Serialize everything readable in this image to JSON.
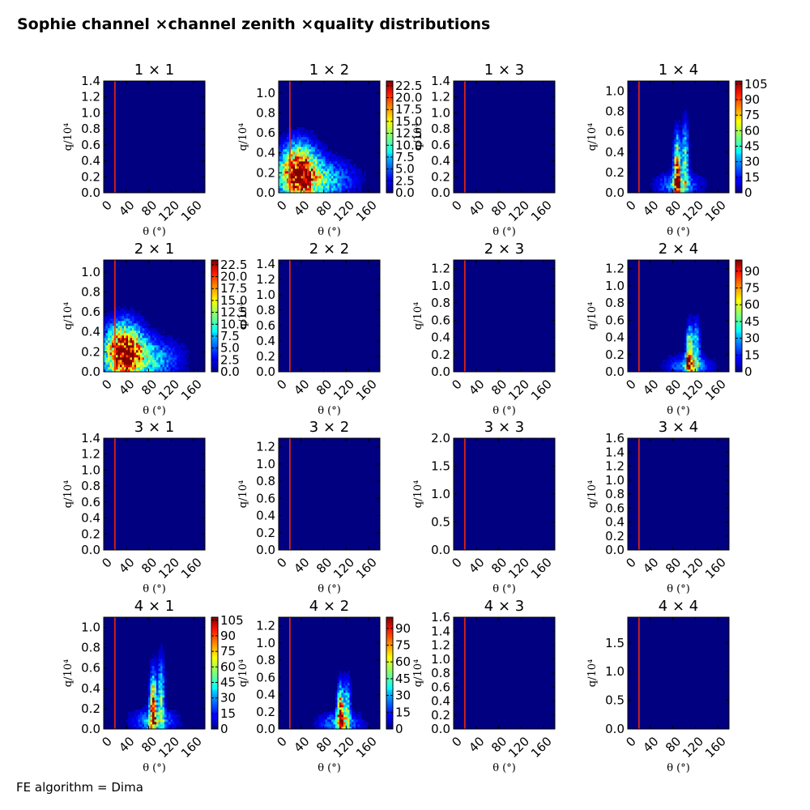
{
  "title": "Sophie channel ×channel zenith ×quality distributions",
  "footer": "FE algorithm = Dima",
  "colors": {
    "background": "#000080",
    "cut_line": "#ff2a00",
    "frame": "#000000"
  },
  "chart_data": [
    {
      "title": "1  × 1",
      "type": "heatmap",
      "xlabel": "θ (°)",
      "ylabel": "q/10⁴",
      "xlim": [
        0,
        180
      ],
      "ylim": [
        0,
        1.4
      ],
      "yticks": [
        "0.0",
        "0.2",
        "0.4",
        "0.6",
        "0.8",
        "1.0",
        "1.2",
        "1.4"
      ],
      "xticks": [
        "0",
        "40",
        "80",
        "120",
        "160"
      ],
      "cut_x": 20,
      "colorbar": null
    },
    {
      "title": "1  × 2",
      "type": "heatmap",
      "xlabel": "θ (°)",
      "ylabel": "q/10⁴",
      "xlim": [
        0,
        180
      ],
      "ylim": [
        0,
        1.12
      ],
      "yticks": [
        "0.0",
        "0.2",
        "0.4",
        "0.6",
        "0.8",
        "1.0"
      ],
      "xticks": [
        "0",
        "40",
        "80",
        "120",
        "160"
      ],
      "cut_x": 20,
      "colorbar": {
        "vmax": 23.5,
        "ticks": [
          "0.0",
          "2.5",
          "5.0",
          "7.5",
          "10.0",
          "12.5",
          "15.0",
          "17.5",
          "20.0",
          "22.5"
        ]
      },
      "blobs": [
        {
          "cx": 35,
          "cy": 0.22,
          "sx": 22,
          "sy": 0.18,
          "amp": 1.0
        },
        {
          "cx": 70,
          "cy": 0.12,
          "sx": 40,
          "sy": 0.14,
          "amp": 0.45
        }
      ]
    },
    {
      "title": "1  × 3",
      "type": "heatmap",
      "xlabel": "θ (°)",
      "ylabel": "q/10⁴",
      "xlim": [
        0,
        180
      ],
      "ylim": [
        0,
        1.4
      ],
      "yticks": [
        "0.0",
        "0.2",
        "0.4",
        "0.6",
        "0.8",
        "1.0",
        "1.2",
        "1.4"
      ],
      "xticks": [
        "0",
        "40",
        "80",
        "120",
        "160"
      ],
      "cut_x": 20,
      "colorbar": null
    },
    {
      "title": "1  × 4",
      "type": "heatmap",
      "xlabel": "θ (°)",
      "ylabel": "q/10⁴",
      "xlim": [
        0,
        180
      ],
      "ylim": [
        0,
        1.1
      ],
      "yticks": [
        "0.0",
        "0.2",
        "0.4",
        "0.6",
        "0.8",
        "1.0"
      ],
      "xticks": [
        "0",
        "40",
        "80",
        "120",
        "160"
      ],
      "cut_x": 20,
      "colorbar": {
        "vmax": 108,
        "ticks": [
          "0",
          "15",
          "30",
          "45",
          "60",
          "75",
          "90",
          "105"
        ]
      },
      "blobs": [
        {
          "cx": 88,
          "cy": 0.2,
          "sx": 4,
          "sy": 0.22,
          "amp": 1.0
        },
        {
          "cx": 102,
          "cy": 0.3,
          "sx": 4,
          "sy": 0.25,
          "amp": 0.5
        },
        {
          "cx": 90,
          "cy": 0.08,
          "sx": 25,
          "sy": 0.08,
          "amp": 0.35
        }
      ]
    },
    {
      "title": "2  × 1",
      "type": "heatmap",
      "xlabel": "θ (°)",
      "ylabel": "q/10⁴",
      "xlim": [
        0,
        180
      ],
      "ylim": [
        0,
        1.12
      ],
      "yticks": [
        "0.0",
        "0.2",
        "0.4",
        "0.6",
        "0.8",
        "1.0"
      ],
      "xticks": [
        "0",
        "40",
        "80",
        "120",
        "160"
      ],
      "cut_x": 20,
      "colorbar": {
        "vmax": 23.5,
        "ticks": [
          "0.0",
          "2.5",
          "5.0",
          "7.5",
          "10.0",
          "12.5",
          "15.0",
          "17.5",
          "20.0",
          "22.5"
        ]
      },
      "blobs": [
        {
          "cx": 35,
          "cy": 0.22,
          "sx": 22,
          "sy": 0.18,
          "amp": 1.0
        },
        {
          "cx": 70,
          "cy": 0.12,
          "sx": 40,
          "sy": 0.14,
          "amp": 0.45
        }
      ]
    },
    {
      "title": "2  × 2",
      "type": "heatmap",
      "xlabel": "θ (°)",
      "ylabel": "q/10⁴",
      "xlim": [
        0,
        180
      ],
      "ylim": [
        0,
        1.45
      ],
      "yticks": [
        "0.0",
        "0.2",
        "0.4",
        "0.6",
        "0.8",
        "1.0",
        "1.2",
        "1.4"
      ],
      "xticks": [
        "0",
        "40",
        "80",
        "120",
        "160"
      ],
      "cut_x": 20,
      "colorbar": null
    },
    {
      "title": "2  × 3",
      "type": "heatmap",
      "xlabel": "θ (°)",
      "ylabel": "q/10⁴",
      "xlim": [
        0,
        180
      ],
      "ylim": [
        0,
        1.3
      ],
      "yticks": [
        "0.0",
        "0.2",
        "0.4",
        "0.6",
        "0.8",
        "1.0",
        "1.2"
      ],
      "xticks": [
        "0",
        "40",
        "80",
        "120",
        "160"
      ],
      "cut_x": 20,
      "colorbar": null
    },
    {
      "title": "2  × 4",
      "type": "heatmap",
      "xlabel": "θ (°)",
      "ylabel": "q/10⁴",
      "xlim": [
        0,
        180
      ],
      "ylim": [
        0,
        1.3
      ],
      "yticks": [
        "0.0",
        "0.2",
        "0.4",
        "0.6",
        "0.8",
        "1.0",
        "1.2"
      ],
      "xticks": [
        "0",
        "40",
        "80",
        "120",
        "160"
      ],
      "cut_x": 20,
      "colorbar": {
        "vmax": 100,
        "ticks": [
          "0",
          "15",
          "30",
          "45",
          "60",
          "75",
          "90"
        ]
      },
      "blobs": [
        {
          "cx": 110,
          "cy": 0.18,
          "sx": 4,
          "sy": 0.2,
          "amp": 1.0
        },
        {
          "cx": 122,
          "cy": 0.25,
          "sx": 4,
          "sy": 0.22,
          "amp": 0.45
        },
        {
          "cx": 110,
          "cy": 0.07,
          "sx": 25,
          "sy": 0.08,
          "amp": 0.35
        }
      ]
    },
    {
      "title": "3  × 1",
      "type": "heatmap",
      "xlabel": "θ (°)",
      "ylabel": "q/10⁴",
      "xlim": [
        0,
        180
      ],
      "ylim": [
        0,
        1.4
      ],
      "yticks": [
        "0.0",
        "0.2",
        "0.4",
        "0.6",
        "0.8",
        "1.0",
        "1.2",
        "1.4"
      ],
      "xticks": [
        "0",
        "40",
        "80",
        "120",
        "160"
      ],
      "cut_x": 20,
      "colorbar": null
    },
    {
      "title": "3  × 2",
      "type": "heatmap",
      "xlabel": "θ (°)",
      "ylabel": "q/10⁴",
      "xlim": [
        0,
        180
      ],
      "ylim": [
        0,
        1.3
      ],
      "yticks": [
        "0.0",
        "0.2",
        "0.4",
        "0.6",
        "0.8",
        "1.0",
        "1.2"
      ],
      "xticks": [
        "0",
        "40",
        "80",
        "120",
        "160"
      ],
      "cut_x": 20,
      "colorbar": null
    },
    {
      "title": "3  × 3",
      "type": "heatmap",
      "xlabel": "θ (°)",
      "ylabel": "q/10⁴",
      "xlim": [
        0,
        180
      ],
      "ylim": [
        0,
        2.0
      ],
      "yticks": [
        "0.0",
        "0.5",
        "1.0",
        "1.5",
        "2.0"
      ],
      "xticks": [
        "0",
        "40",
        "80",
        "120",
        "160"
      ],
      "cut_x": 20,
      "colorbar": null
    },
    {
      "title": "3  × 4",
      "type": "heatmap",
      "xlabel": "θ (°)",
      "ylabel": "q/10⁴",
      "xlim": [
        0,
        180
      ],
      "ylim": [
        0,
        1.6
      ],
      "yticks": [
        "0.0",
        "0.2",
        "0.4",
        "0.6",
        "0.8",
        "1.0",
        "1.2",
        "1.4",
        "1.6"
      ],
      "xticks": [
        "0",
        "40",
        "80",
        "120",
        "160"
      ],
      "cut_x": 20,
      "colorbar": null
    },
    {
      "title": "4  × 1",
      "type": "heatmap",
      "xlabel": "θ (°)",
      "ylabel": "q/10⁴",
      "xlim": [
        0,
        180
      ],
      "ylim": [
        0,
        1.1
      ],
      "yticks": [
        "0.0",
        "0.2",
        "0.4",
        "0.6",
        "0.8",
        "1.0"
      ],
      "xticks": [
        "0",
        "40",
        "80",
        "120",
        "160"
      ],
      "cut_x": 20,
      "colorbar": {
        "vmax": 108,
        "ticks": [
          "0",
          "15",
          "30",
          "45",
          "60",
          "75",
          "90",
          "105"
        ]
      },
      "blobs": [
        {
          "cx": 88,
          "cy": 0.2,
          "sx": 4,
          "sy": 0.22,
          "amp": 1.0
        },
        {
          "cx": 102,
          "cy": 0.3,
          "sx": 4,
          "sy": 0.25,
          "amp": 0.5
        },
        {
          "cx": 90,
          "cy": 0.08,
          "sx": 25,
          "sy": 0.08,
          "amp": 0.35
        }
      ]
    },
    {
      "title": "4  × 2",
      "type": "heatmap",
      "xlabel": "θ (°)",
      "ylabel": "q/10⁴",
      "xlim": [
        0,
        180
      ],
      "ylim": [
        0,
        1.3
      ],
      "yticks": [
        "0.0",
        "0.2",
        "0.4",
        "0.6",
        "0.8",
        "1.0",
        "1.2"
      ],
      "xticks": [
        "0",
        "40",
        "80",
        "120",
        "160"
      ],
      "cut_x": 20,
      "colorbar": {
        "vmax": 100,
        "ticks": [
          "0",
          "15",
          "30",
          "45",
          "60",
          "75",
          "90"
        ]
      },
      "blobs": [
        {
          "cx": 110,
          "cy": 0.18,
          "sx": 4,
          "sy": 0.2,
          "amp": 1.0
        },
        {
          "cx": 122,
          "cy": 0.25,
          "sx": 4,
          "sy": 0.22,
          "amp": 0.45
        },
        {
          "cx": 110,
          "cy": 0.07,
          "sx": 25,
          "sy": 0.08,
          "amp": 0.35
        }
      ]
    },
    {
      "title": "4  × 3",
      "type": "heatmap",
      "xlabel": "θ (°)",
      "ylabel": "q/10⁴",
      "xlim": [
        0,
        180
      ],
      "ylim": [
        0,
        1.6
      ],
      "yticks": [
        "0.0",
        "0.2",
        "0.4",
        "0.6",
        "0.8",
        "1.0",
        "1.2",
        "1.4",
        "1.6"
      ],
      "xticks": [
        "0",
        "40",
        "80",
        "120",
        "160"
      ],
      "cut_x": 20,
      "colorbar": null
    },
    {
      "title": "4  × 4",
      "type": "heatmap",
      "xlabel": "θ (°)",
      "ylabel": "q/10⁴",
      "xlim": [
        0,
        180
      ],
      "ylim": [
        0,
        1.95
      ],
      "yticks": [
        "0.0",
        "0.5",
        "1.0",
        "1.5"
      ],
      "xticks": [
        "0",
        "40",
        "80",
        "120",
        "160"
      ],
      "cut_x": 20,
      "colorbar": null
    }
  ]
}
